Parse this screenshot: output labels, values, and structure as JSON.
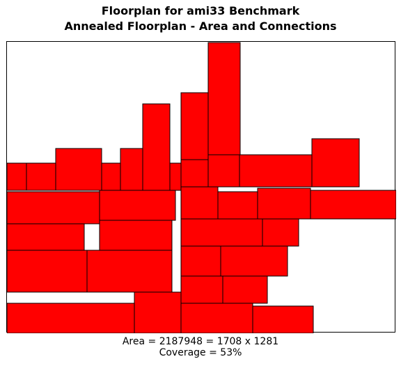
{
  "title_line1": "Floorplan for ami33 Benchmark",
  "title_line2": "Annealed Floorplan - Area and Connections",
  "area_text": "Area = 2187948 = 1708 x 1281",
  "coverage_text": "Coverage = 53%",
  "block_color": "#ff0000",
  "block_count": 49
}
